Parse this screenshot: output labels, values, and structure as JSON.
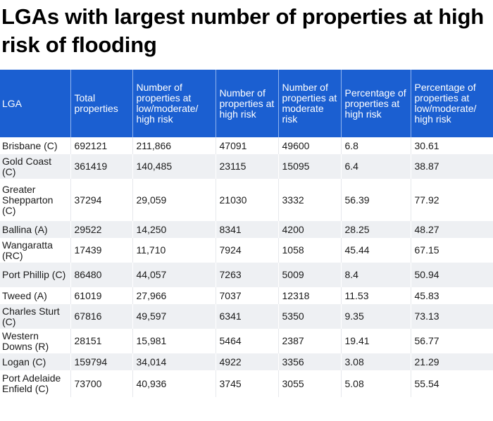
{
  "title": "LGAs with largest number of properties at high risk of flooding",
  "columns": [
    "LGA",
    "Total properties",
    "Number of properties at low/moderate/ high risk",
    "Number of properties at high risk",
    "Number of properties at moderate risk",
    "Percentage of properties at high risk",
    "Percentage of properties at low/moderate/ high risk"
  ],
  "rows": [
    [
      "Brisbane (C)",
      "692121",
      "211,866",
      "47091",
      "49600",
      "6.8",
      "30.61"
    ],
    [
      "Gold Coast (C)",
      "361419",
      "140,485",
      "23115",
      "15095",
      "6.4",
      "38.87"
    ],
    [
      "Greater Shepparton (C)",
      "37294",
      "29,059",
      "21030",
      "3332",
      "56.39",
      "77.92"
    ],
    [
      "Ballina (A)",
      "29522",
      "14,250",
      "8341",
      "4200",
      "28.25",
      "48.27"
    ],
    [
      "Wangaratta (RC)",
      "17439",
      "11,710",
      "7924",
      "1058",
      "45.44",
      "67.15"
    ],
    [
      "Port Phillip (C)",
      "86480",
      "44,057",
      "7263",
      "5009",
      "8.4",
      "50.94"
    ],
    [
      "Tweed (A)",
      "61019",
      "27,966",
      "7037",
      "12318",
      "11.53",
      "45.83"
    ],
    [
      "Charles Sturt (C)",
      "67816",
      "49,597",
      "6341",
      "5350",
      "9.35",
      "73.13"
    ],
    [
      "Western Downs (R)",
      "28151",
      "15,981",
      "5464",
      "2387",
      "19.41",
      "56.77"
    ],
    [
      "Logan (C)",
      "159794",
      "34,014",
      "4922",
      "3356",
      "3.08",
      "21.29"
    ],
    [
      "Port Adelaide Enfield (C)",
      "73700",
      "40,936",
      "3745",
      "3055",
      "5.08",
      "55.54"
    ]
  ]
}
